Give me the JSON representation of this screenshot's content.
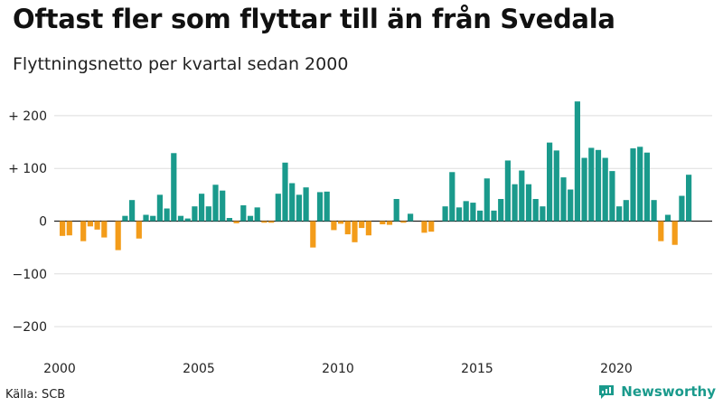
{
  "header": {
    "title": "Oftast fler som flyttar till än från Svedala",
    "subtitle": "Flyttningsnetto per kvartal sedan 2000"
  },
  "footer": {
    "source": "Källa: SCB",
    "brand": "Newsworthy",
    "brand_icon": "bar-chart-logo-icon"
  },
  "colors": {
    "positive": "#1a9a8c",
    "negative": "#f39c1a",
    "grid": "#dddddd",
    "zero_line": "#222222",
    "brand": "#1a9a8c"
  },
  "chart_data": {
    "type": "bar",
    "ylim": [
      -230,
      240
    ],
    "y_ticks": [
      {
        "value": 200,
        "label": "+ 200"
      },
      {
        "value": 100,
        "label": "+ 100"
      },
      {
        "value": 0,
        "label": "0"
      },
      {
        "value": -100,
        "label": "−100"
      },
      {
        "value": -200,
        "label": "−200"
      }
    ],
    "x_ticks": [
      {
        "year": 2000,
        "label": "2000"
      },
      {
        "year": 2005,
        "label": "2005"
      },
      {
        "year": 2010,
        "label": "2010"
      },
      {
        "year": 2015,
        "label": "2015"
      },
      {
        "year": 2020,
        "label": "2020"
      }
    ],
    "start_year": 2000,
    "grid": true,
    "values": [
      -28,
      -27,
      0,
      -38,
      -10,
      -16,
      -31,
      0,
      -55,
      10,
      40,
      -33,
      12,
      10,
      50,
      24,
      129,
      10,
      5,
      28,
      52,
      28,
      69,
      58,
      6,
      -4,
      30,
      10,
      26,
      -3,
      -3,
      52,
      111,
      72,
      50,
      64,
      -50,
      55,
      56,
      -17,
      -5,
      -25,
      -40,
      -13,
      -27,
      0,
      -6,
      -7,
      42,
      -3,
      14,
      0,
      -22,
      -20,
      0,
      28,
      93,
      26,
      38,
      35,
      20,
      81,
      20,
      42,
      115,
      70,
      96,
      70,
      42,
      28,
      149,
      134,
      83,
      60,
      227,
      120,
      139,
      135,
      120,
      95,
      28,
      40,
      138,
      141,
      130,
      40,
      -38,
      12,
      -45,
      48,
      88
    ]
  }
}
